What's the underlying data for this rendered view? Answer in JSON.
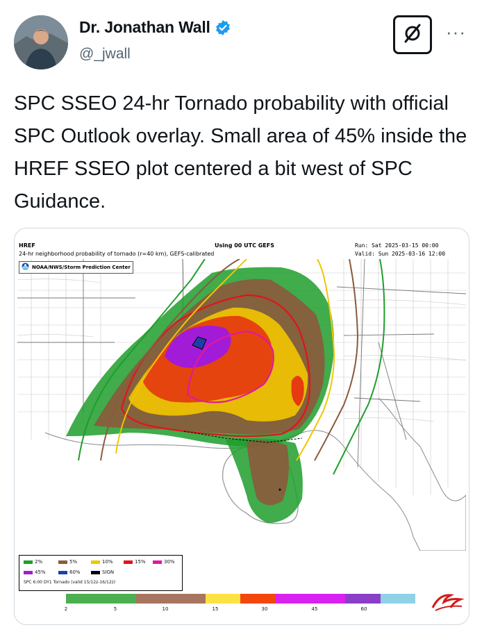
{
  "author": {
    "name": "Dr. Jonathan Wall",
    "handle": "@_jwall"
  },
  "icons": {
    "verified": "verified-badge-icon",
    "grok": "grok-icon",
    "more": "more-icon",
    "noaa": "noaa-logo-icon",
    "spc": "spc-logo-icon"
  },
  "tweet": {
    "text": "SPC SSEO 24-hr Tornado probability with official SPC Outlook overlay. Small area of 45% inside the HREF SSEO plot centered a bit west of SPC Guidance."
  },
  "map": {
    "model": "HREF",
    "subtitle": "24-hr neighborhood probability of tornado (r=40 km), GEFS-calibrated",
    "center_title": "Using 00 UTC GEFS",
    "run": "Run: Sat 2025-03-15 00:00",
    "valid": "Valid: Sun 2025-03-16 12:00",
    "agency": "NOAA/NWS/Storm Prediction Center",
    "legend": {
      "items": [
        {
          "label": "2%",
          "color": "#1f9e2c"
        },
        {
          "label": "5%",
          "color": "#8b5a3c"
        },
        {
          "label": "10%",
          "color": "#f2c500"
        },
        {
          "label": "15%",
          "color": "#e2141b"
        },
        {
          "label": "30%",
          "color": "#e0199e"
        },
        {
          "label": "45%",
          "color": "#a21bd6"
        },
        {
          "label": "60%",
          "color": "#1f3fa8"
        },
        {
          "label": "SIGN",
          "color": "#000000"
        }
      ],
      "footer": "SPC 6:00 DY1 Tornado (valid 15/12z-16/12z)"
    },
    "colorbar": {
      "ticks": [
        "2",
        "5",
        "10",
        "15",
        "30",
        "45",
        "60"
      ],
      "colors": [
        "#4caf50",
        "#4caf50",
        "#a87660",
        "#a87660",
        "#fde245",
        "#f3470e",
        "#d722f0",
        "#d722f0",
        "#8b3fc7",
        "#8fd1e6"
      ]
    }
  }
}
